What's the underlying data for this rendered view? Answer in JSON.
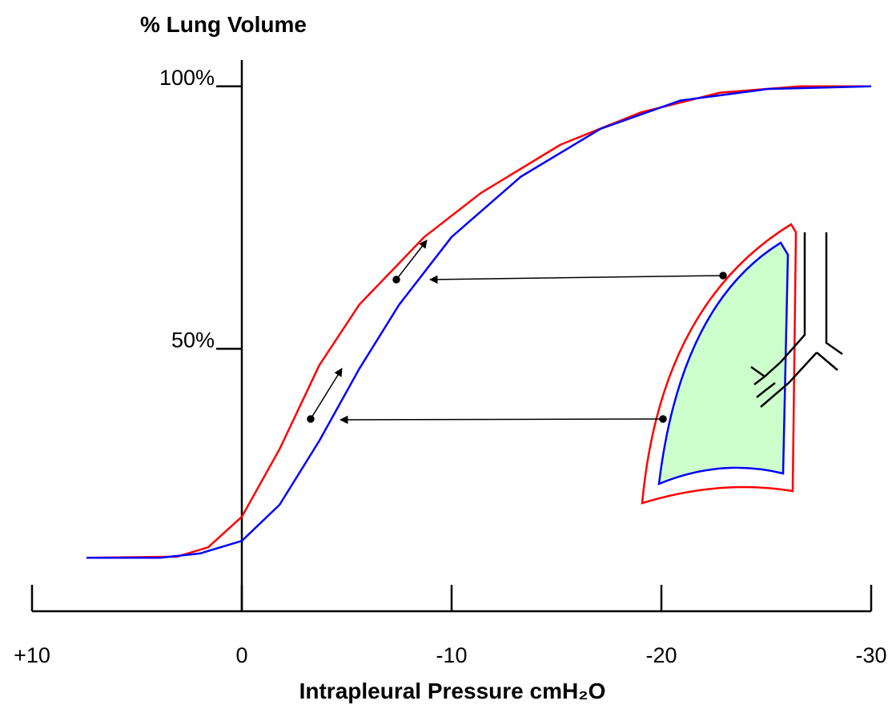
{
  "chart_data": {
    "type": "line",
    "title": "% Lung Volume",
    "x_label": "Intrapleural Pressure  cmH₂O",
    "xlim": [
      10,
      -30
    ],
    "xticks": [
      {
        "value": 10,
        "label": "+10"
      },
      0,
      -10,
      -20,
      -30
    ],
    "ylim": [
      0,
      105
    ],
    "yticks": [
      {
        "value": 50,
        "label": "50%"
      },
      {
        "value": 100,
        "label": "100%"
      }
    ],
    "series": [
      {
        "color": "#ff0000",
        "x": [
          7.4,
          3.1,
          1.6,
          0,
          -1.8,
          -3.7,
          -5.6,
          -8.7,
          -11.4,
          -15.2,
          -19,
          -22.8,
          -26.6,
          -30
        ],
        "values": [
          10.2,
          10.4,
          12.2,
          18,
          30.9,
          46.9,
          58.4,
          71.3,
          79.7,
          88.9,
          95,
          98.8,
          100,
          100
        ]
      },
      {
        "color": "#0000ff",
        "x": [
          7.4,
          3.9,
          2,
          0,
          -1.8,
          -3.7,
          -5.6,
          -7.5,
          -10,
          -13.3,
          -17.1,
          -20.9,
          -25.1,
          -30
        ],
        "values": [
          10.2,
          10.2,
          11,
          13.4,
          20.3,
          32.5,
          46.2,
          58.4,
          71.3,
          82.8,
          91.9,
          97.3,
          99.5,
          100
        ]
      }
    ]
  }
}
